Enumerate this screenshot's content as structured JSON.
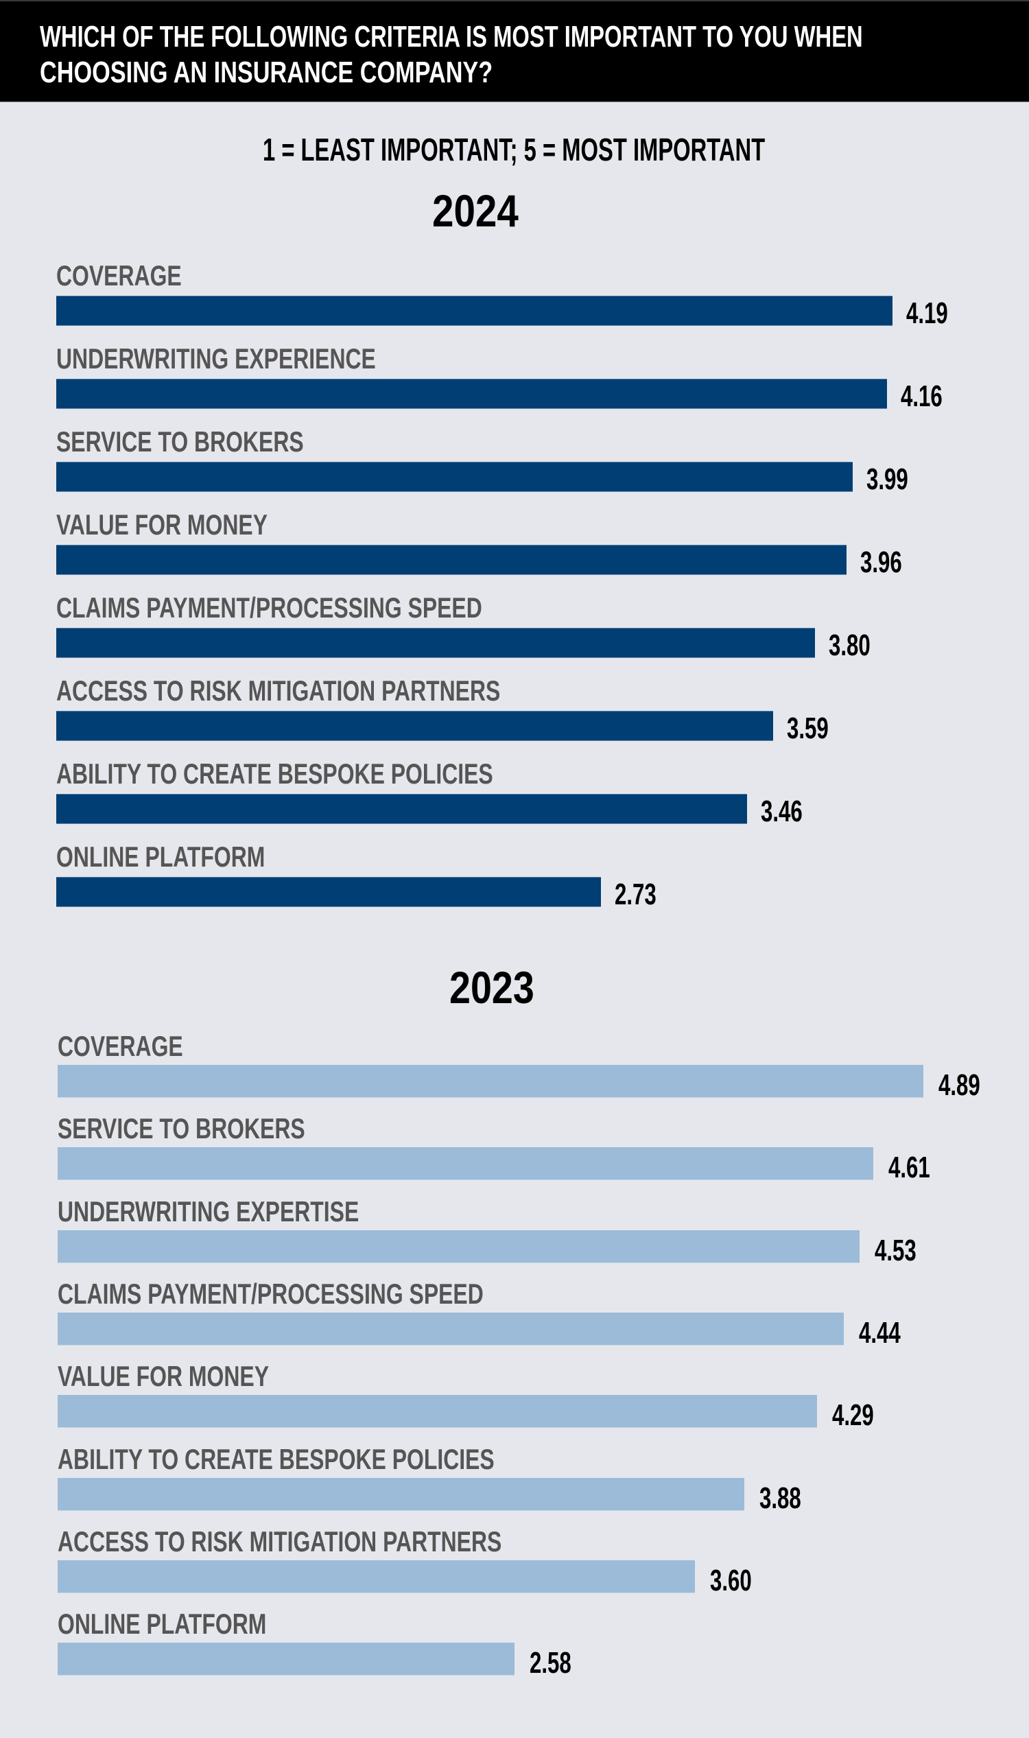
{
  "header": {
    "title_line1": "WHICH OF THE FOLLOWING CRITERIA IS MOST IMPORTANT TO YOU WHEN",
    "title_line2": "CHOOSING AN INSURANCE COMPANY?"
  },
  "subtitle": "1 = LEAST IMPORTANT; 5 = MOST IMPORTANT",
  "colors": {
    "bar_2024": "#003e73",
    "bar_2023": "#9bbbd8",
    "background": "#e6e7ec",
    "header": "#000000",
    "label": "#555555"
  },
  "chart_data": [
    {
      "type": "bar",
      "orientation": "horizontal",
      "title": "2024",
      "xlim": [
        0,
        5
      ],
      "scale_note": "1 = LEAST IMPORTANT; 5 = MOST IMPORTANT",
      "categories": [
        "COVERAGE",
        "UNDERWRITING EXPERIENCE",
        "SERVICE TO BROKERS",
        "VALUE FOR MONEY",
        "CLAIMS PAYMENT/PROCESSING SPEED",
        "ACCESS TO RISK MITIGATION PARTNERS",
        "ABILITY TO CREATE BESPOKE POLICIES",
        "ONLINE PLATFORM"
      ],
      "values": [
        4.19,
        4.16,
        3.99,
        3.96,
        3.8,
        3.59,
        3.46,
        2.73
      ],
      "value_labels": [
        "4.19",
        "4.16",
        "3.99",
        "3.96",
        "3.80",
        "3.59",
        "3.46",
        "2.73"
      ],
      "color": "#003e73",
      "grid": false,
      "legend": "none"
    },
    {
      "type": "bar",
      "orientation": "horizontal",
      "title": "2023",
      "xlim": [
        0,
        5
      ],
      "scale_note": "1 = LEAST IMPORTANT; 5 = MOST IMPORTANT",
      "categories": [
        "COVERAGE",
        "SERVICE TO BROKERS",
        "UNDERWRITING EXPERTISE",
        "CLAIMS PAYMENT/PROCESSING SPEED",
        "VALUE FOR MONEY",
        "ABILITY TO CREATE BESPOKE POLICIES",
        "ACCESS TO RISK MITIGATION PARTNERS",
        "ONLINE PLATFORM"
      ],
      "values": [
        4.89,
        4.61,
        4.53,
        4.44,
        4.29,
        3.88,
        3.6,
        2.58
      ],
      "value_labels": [
        "4.89",
        "4.61",
        "4.53",
        "4.44",
        "4.29",
        "3.88",
        "3.60",
        "2.58"
      ],
      "color": "#9bbbd8",
      "grid": false,
      "legend": "none"
    }
  ]
}
